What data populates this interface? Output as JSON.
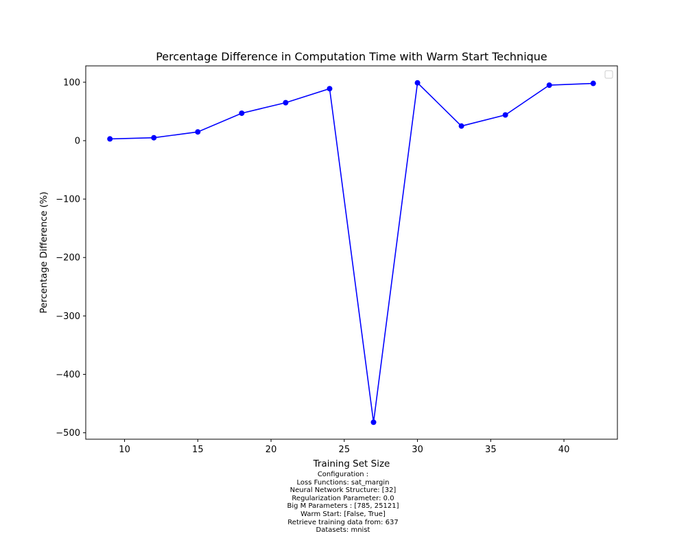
{
  "chart_data": {
    "type": "line",
    "title": "Percentage Difference in Computation Time with Warm Start Technique",
    "xlabel": "Training Set Size",
    "ylabel": "Percentage Difference (%)",
    "x": [
      9,
      12,
      15,
      18,
      21,
      24,
      27,
      30,
      33,
      36,
      39,
      42
    ],
    "series": [
      {
        "values": [
          3,
          5,
          15,
          47,
          65,
          89,
          -482,
          99,
          25,
          44,
          95,
          98
        ],
        "color": "#0000ff",
        "marker": "circle"
      }
    ],
    "xlim": [
      7.35,
      43.65
    ],
    "ylim": [
      -511,
      128
    ],
    "xticks": [
      10,
      15,
      20,
      25,
      30,
      35,
      40
    ],
    "yticks": [
      100,
      0,
      -100,
      -200,
      -300,
      -400,
      -500
    ],
    "xtick_labels": [
      "10",
      "15",
      "20",
      "25",
      "30",
      "35",
      "40"
    ],
    "ytick_labels": [
      "100",
      "0",
      "−100",
      "−200",
      "−300",
      "−400",
      "−500"
    ],
    "grid": false,
    "legend": "top-right, empty"
  },
  "caption": [
    "Configuration :",
    "Loss Functions: sat_margin",
    "Neural Network Structure: [32]",
    "Regularization Parameter: 0.0",
    "Big M Parameters : [785, 25121]",
    "Warm Start: [False, True]",
    "Retrieve training data from: 637",
    "Datasets: mnist"
  ]
}
